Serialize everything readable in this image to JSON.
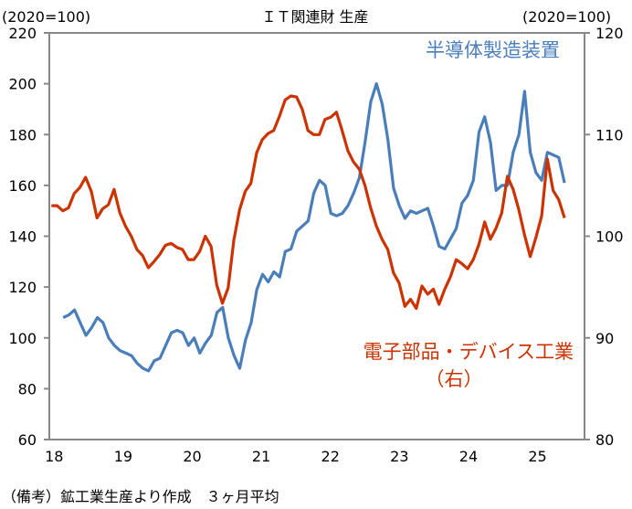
{
  "chart_data": {
    "type": "line",
    "title": "ＩＴ関連財 生産",
    "left_axis_label": "(2020=100)",
    "right_axis_label": "(2020=100)",
    "ylim_left": [
      60,
      220
    ],
    "ylim_right": [
      80,
      120
    ],
    "yticks_left": [
      "220",
      "200",
      "180",
      "160",
      "140",
      "120",
      "100",
      "80",
      "60"
    ],
    "yticks_right": [
      "120",
      "110",
      "100",
      "90",
      "80"
    ],
    "xlim": [
      2017.97,
      2025.72
    ],
    "xticks": [
      "18",
      "19",
      "20",
      "21",
      "22",
      "23",
      "24",
      "25"
    ],
    "grid": false,
    "series": [
      {
        "name": "半導体製造装置",
        "axis": "left",
        "color": "#4a7ebb",
        "start": 2018.17,
        "end": 2025.43,
        "values": [
          108,
          109,
          111,
          106,
          101,
          104,
          108,
          106,
          100,
          97,
          95,
          94,
          93,
          90,
          88,
          87,
          91,
          92,
          97,
          102,
          103,
          102,
          97,
          100,
          94,
          98,
          101,
          110,
          112,
          100,
          93,
          88,
          99,
          106,
          119,
          125,
          122,
          126,
          124,
          134,
          135,
          142,
          144,
          146,
          157,
          162,
          160,
          149,
          148,
          149,
          152,
          157,
          163,
          177,
          193,
          200,
          192,
          178,
          159,
          152,
          147,
          150,
          149,
          150,
          151,
          144,
          136,
          135,
          139,
          143,
          153,
          156,
          162,
          181,
          187,
          177,
          158,
          160,
          160,
          173,
          180,
          197,
          173,
          165,
          162,
          173,
          172,
          171,
          161
        ]
      },
      {
        "name": "電子部品・デバイス工業",
        "name_sub": "（右）",
        "axis": "right",
        "color": "#cc3300",
        "start": 2018.0,
        "end": 2025.43,
        "values": [
          103.0,
          103.0,
          102.5,
          102.8,
          104.2,
          104.8,
          105.8,
          104.4,
          101.8,
          102.7,
          103.1,
          104.6,
          102.3,
          101.0,
          100.0,
          98.7,
          98.1,
          96.9,
          97.5,
          98.2,
          99.1,
          99.3,
          98.9,
          98.7,
          97.7,
          97.7,
          98.5,
          100.0,
          99.0,
          95.2,
          93.4,
          94.9,
          99.6,
          102.6,
          104.4,
          105.2,
          108.2,
          109.5,
          110.1,
          110.4,
          111.8,
          113.4,
          113.8,
          113.7,
          112.5,
          110.4,
          110.0,
          110.0,
          111.5,
          111.7,
          112.2,
          110.4,
          108.4,
          107.3,
          106.6,
          105.0,
          102.8,
          101.0,
          99.7,
          98.7,
          96.4,
          95.4,
          93.1,
          93.8,
          92.9,
          95.1,
          94.3,
          94.8,
          93.3,
          94.8,
          96.0,
          97.7,
          97.3,
          96.8,
          97.7,
          99.2,
          101.4,
          99.7,
          100.8,
          102.3,
          105.9,
          104.6,
          102.6,
          100.1,
          98.0,
          99.9,
          102.0,
          107.6,
          104.5,
          103.6,
          101.8
        ]
      }
    ]
  },
  "footer": {
    "note": "（備考）鉱工業生産より作成　３ヶ月平均"
  }
}
